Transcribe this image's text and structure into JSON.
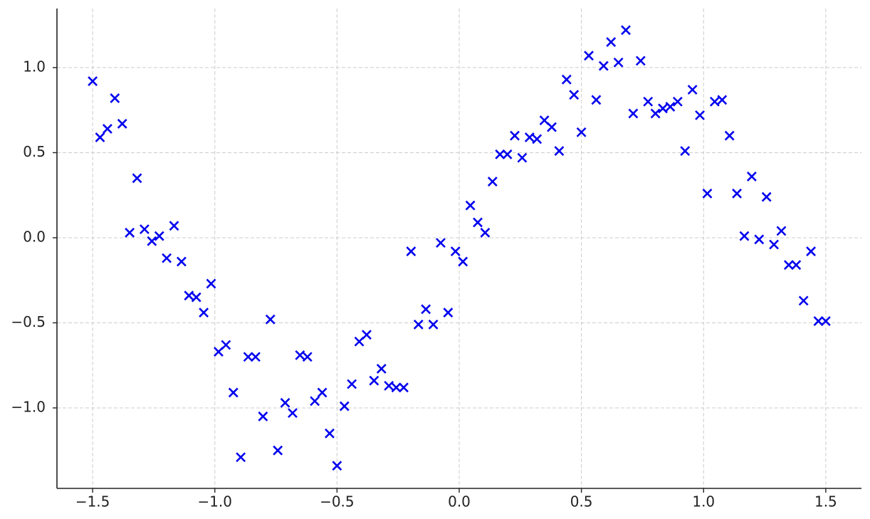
{
  "chart_data": {
    "type": "scatter",
    "marker": "x",
    "color": "#0000ee",
    "grid": true,
    "x": [
      -1.5,
      -1.4697,
      -1.4394,
      -1.4091,
      -1.3788,
      -1.3485,
      -1.3182,
      -1.2879,
      -1.2576,
      -1.2273,
      -1.197,
      -1.1667,
      -1.1364,
      -1.1061,
      -1.0758,
      -1.0455,
      -1.0152,
      -0.9848,
      -0.9545,
      -0.9242,
      -0.8939,
      -0.8636,
      -0.8333,
      -0.803,
      -0.7727,
      -0.7424,
      -0.7121,
      -0.6818,
      -0.6515,
      -0.6212,
      -0.5909,
      -0.5606,
      -0.5303,
      -0.5,
      -0.4697,
      -0.4394,
      -0.4091,
      -0.3788,
      -0.3485,
      -0.3182,
      -0.2879,
      -0.2576,
      -0.2273,
      -0.197,
      -0.1667,
      -0.1364,
      -0.1061,
      -0.0758,
      -0.0455,
      -0.0152,
      0.0152,
      0.0455,
      0.0758,
      0.1061,
      0.1364,
      0.1667,
      0.197,
      0.2273,
      0.2576,
      0.2879,
      0.3182,
      0.3485,
      0.3788,
      0.4091,
      0.4394,
      0.4697,
      0.5,
      0.5303,
      0.5606,
      0.5909,
      0.6212,
      0.6515,
      0.6818,
      0.7121,
      0.7424,
      0.7727,
      0.803,
      0.8333,
      0.8636,
      0.8939,
      0.9242,
      0.9545,
      0.9848,
      1.0152,
      1.0455,
      1.0758,
      1.1061,
      1.1364,
      1.1667,
      1.197,
      1.2273,
      1.2576,
      1.2879,
      1.3182,
      1.3485,
      1.3788,
      1.4091,
      1.4394,
      1.4697,
      1.5
    ],
    "values": [
      0.92,
      0.59,
      0.64,
      0.82,
      0.67,
      0.03,
      0.35,
      0.05,
      -0.02,
      0.01,
      -0.12,
      0.07,
      -0.14,
      -0.34,
      -0.35,
      -0.44,
      -0.27,
      -0.67,
      -0.63,
      -0.91,
      -1.29,
      -0.7,
      -0.7,
      -1.05,
      -0.48,
      -1.25,
      -0.97,
      -1.03,
      -0.69,
      -0.7,
      -0.96,
      -0.91,
      -1.15,
      -1.34,
      -0.99,
      -0.86,
      -0.61,
      -0.57,
      -0.84,
      -0.77,
      -0.87,
      -0.88,
      -0.88,
      -0.08,
      -0.51,
      -0.42,
      -0.51,
      -0.03,
      -0.44,
      -0.08,
      -0.14,
      0.19,
      0.09,
      0.03,
      0.33,
      0.49,
      0.49,
      0.6,
      0.47,
      0.59,
      0.58,
      0.69,
      0.65,
      0.51,
      0.93,
      0.84,
      0.62,
      1.07,
      0.81,
      1.01,
      1.15,
      1.03,
      1.22,
      0.73,
      1.04,
      0.8,
      0.73,
      0.76,
      0.77,
      0.8,
      0.51,
      0.87,
      0.72,
      0.26,
      0.8,
      0.81,
      0.6,
      0.26,
      0.01,
      0.36,
      -0.01,
      0.24,
      -0.04,
      0.04,
      -0.16,
      -0.16,
      -0.37,
      -0.08,
      -0.49,
      -0.49
    ],
    "xlim": [
      -1.646,
      1.646
    ],
    "ylim": [
      -1.473,
      1.347
    ],
    "xticks": [
      {
        "value": -1.5,
        "label": "−1.5"
      },
      {
        "value": -1.0,
        "label": "−1.0"
      },
      {
        "value": -0.5,
        "label": "−0.5"
      },
      {
        "value": 0,
        "label": "0.0"
      },
      0.5,
      {
        "value": 1,
        "label": "1.0"
      },
      1.5
    ],
    "yticks": [
      {
        "value": -1.0,
        "label": "−1.0"
      },
      {
        "value": -0.5,
        "label": "−0.5"
      },
      {
        "value": 0,
        "label": "0.0"
      },
      0.5,
      {
        "value": 1,
        "label": "1.0"
      }
    ]
  }
}
